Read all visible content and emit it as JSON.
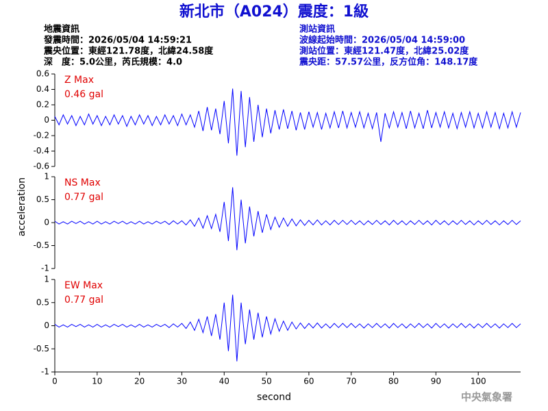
{
  "header": {
    "title": "新北市（A024）震度：1級",
    "left": [
      "地震資訊",
      "發震時間：2026/05/04 14:59:21",
      "震央位置：東經121.78度，北緯24.58度",
      "深　度：5.0公里，芮氏規模：4.0"
    ],
    "right": [
      "測站資訊",
      "波線起始時間：2026/05/04 14:59:00",
      "測站位置：東經121.47度，北緯25.02度",
      "震央距：57.57公里，反方位角：148.17度"
    ]
  },
  "y_label": "acceleration",
  "footer": "中央氣象署",
  "chart_data": [
    {
      "type": "line",
      "title": "Z Max",
      "annotation": "0.46 gal",
      "color": "#0000ff",
      "xlim": [
        0,
        110
      ],
      "ylim": [
        -0.6,
        0.6
      ],
      "yticks": [
        0.6,
        0.4,
        0.2,
        0,
        -0.2,
        -0.4,
        -0.6
      ],
      "x": [
        0,
        1,
        2,
        3,
        4,
        5,
        6,
        7,
        8,
        9,
        10,
        11,
        12,
        13,
        14,
        15,
        16,
        17,
        18,
        19,
        20,
        21,
        22,
        23,
        24,
        25,
        26,
        27,
        28,
        29,
        30,
        31,
        32,
        33,
        34,
        35,
        36,
        37,
        38,
        39,
        40,
        41,
        42,
        43,
        44,
        45,
        46,
        47,
        48,
        49,
        50,
        51,
        52,
        53,
        54,
        55,
        56,
        57,
        58,
        59,
        60,
        61,
        62,
        63,
        64,
        65,
        66,
        67,
        68,
        69,
        70,
        71,
        72,
        73,
        74,
        75,
        76,
        77,
        78,
        79,
        80,
        81,
        82,
        83,
        84,
        85,
        86,
        87,
        88,
        89,
        90,
        91,
        92,
        93,
        94,
        95,
        96,
        97,
        98,
        99,
        100,
        101,
        102,
        103,
        104,
        105,
        106,
        107,
        108,
        109,
        110
      ],
      "values": [
        0.05,
        -0.06,
        0.07,
        -0.05,
        0.06,
        -0.07,
        0.05,
        -0.06,
        0.08,
        -0.05,
        0.06,
        -0.07,
        0.05,
        -0.06,
        0.07,
        -0.05,
        0.06,
        -0.08,
        0.05,
        -0.06,
        0.07,
        -0.05,
        0.06,
        -0.07,
        0.05,
        -0.06,
        0.07,
        -0.05,
        0.06,
        -0.07,
        0.08,
        -0.06,
        0.07,
        -0.09,
        0.12,
        -0.14,
        0.17,
        -0.13,
        0.15,
        -0.18,
        0.25,
        -0.3,
        0.41,
        -0.46,
        0.38,
        -0.35,
        0.3,
        -0.28,
        0.2,
        -0.22,
        0.15,
        -0.17,
        0.13,
        -0.12,
        0.14,
        -0.11,
        0.12,
        -0.13,
        0.1,
        -0.12,
        0.11,
        -0.09,
        0.1,
        -0.12,
        0.09,
        -0.1,
        0.11,
        -0.1,
        0.12,
        -0.1,
        0.1,
        -0.09,
        0.11,
        -0.1,
        0.09,
        -0.11,
        0.1,
        -0.28,
        0.09,
        -0.1,
        0.11,
        -0.09,
        0.1,
        -0.11,
        0.12,
        -0.1,
        0.09,
        -0.11,
        0.13,
        -0.1,
        0.1,
        -0.09,
        0.11,
        -0.1,
        0.09,
        -0.11,
        0.1,
        -0.09,
        0.11,
        -0.1,
        0.09,
        -0.1,
        0.11,
        -0.09,
        0.1,
        -0.11,
        0.09,
        -0.1,
        0.11,
        -0.09,
        0.1
      ]
    },
    {
      "type": "line",
      "title": "NS Max",
      "annotation": "0.77 gal",
      "color": "#0000ff",
      "xlim": [
        0,
        110
      ],
      "ylim": [
        -1,
        1
      ],
      "yticks": [
        1,
        0.5,
        0,
        -0.5,
        -1
      ],
      "x": [
        0,
        1,
        2,
        3,
        4,
        5,
        6,
        7,
        8,
        9,
        10,
        11,
        12,
        13,
        14,
        15,
        16,
        17,
        18,
        19,
        20,
        21,
        22,
        23,
        24,
        25,
        26,
        27,
        28,
        29,
        30,
        31,
        32,
        33,
        34,
        35,
        36,
        37,
        38,
        39,
        40,
        41,
        42,
        43,
        44,
        45,
        46,
        47,
        48,
        49,
        50,
        51,
        52,
        53,
        54,
        55,
        56,
        57,
        58,
        59,
        60,
        61,
        62,
        63,
        64,
        65,
        66,
        67,
        68,
        69,
        70,
        71,
        72,
        73,
        74,
        75,
        76,
        77,
        78,
        79,
        80,
        81,
        82,
        83,
        84,
        85,
        86,
        87,
        88,
        89,
        90,
        91,
        92,
        93,
        94,
        95,
        96,
        97,
        98,
        99,
        100,
        101,
        102,
        103,
        104,
        105,
        106,
        107,
        108,
        109,
        110
      ],
      "values": [
        0.03,
        -0.03,
        0.02,
        -0.03,
        0.03,
        -0.02,
        0.03,
        -0.03,
        0.02,
        -0.03,
        0.03,
        -0.03,
        0.02,
        -0.03,
        0.03,
        -0.02,
        0.03,
        -0.03,
        0.02,
        -0.03,
        0.03,
        -0.03,
        0.02,
        -0.03,
        0.03,
        -0.02,
        0.03,
        -0.04,
        0.04,
        -0.03,
        0.04,
        -0.05,
        0.06,
        -0.08,
        0.1,
        -0.12,
        0.15,
        -0.13,
        0.18,
        -0.2,
        0.45,
        -0.4,
        0.77,
        -0.6,
        0.5,
        -0.45,
        0.35,
        -0.3,
        0.25,
        -0.22,
        0.18,
        -0.15,
        0.12,
        -0.1,
        0.1,
        -0.08,
        0.08,
        -0.07,
        0.06,
        -0.06,
        0.05,
        -0.05,
        0.06,
        -0.05,
        0.04,
        -0.05,
        0.05,
        -0.04,
        0.05,
        -0.04,
        0.05,
        -0.04,
        0.04,
        -0.05,
        0.04,
        -0.04,
        0.05,
        -0.04,
        0.04,
        -0.05,
        0.05,
        -0.04,
        0.04,
        -0.05,
        0.04,
        -0.04,
        0.05,
        -0.04,
        0.04,
        -0.05,
        0.05,
        -0.04,
        0.04,
        -0.05,
        0.04,
        -0.04,
        0.05,
        -0.04,
        0.04,
        -0.05,
        0.04,
        -0.04,
        0.05,
        -0.04,
        0.04,
        -0.05,
        0.04,
        -0.04,
        0.05,
        -0.04,
        0.04
      ]
    },
    {
      "type": "line",
      "title": "EW Max",
      "annotation": "0.77 gal",
      "color": "#0000ff",
      "xlim": [
        0,
        110
      ],
      "ylim": [
        -1,
        1
      ],
      "yticks": [
        1,
        0.5,
        0,
        -0.5,
        -1
      ],
      "xticks": [
        0,
        10,
        20,
        30,
        40,
        50,
        60,
        70,
        80,
        90,
        100
      ],
      "xlabel": "second",
      "x": [
        0,
        1,
        2,
        3,
        4,
        5,
        6,
        7,
        8,
        9,
        10,
        11,
        12,
        13,
        14,
        15,
        16,
        17,
        18,
        19,
        20,
        21,
        22,
        23,
        24,
        25,
        26,
        27,
        28,
        29,
        30,
        31,
        32,
        33,
        34,
        35,
        36,
        37,
        38,
        39,
        40,
        41,
        42,
        43,
        44,
        45,
        46,
        47,
        48,
        49,
        50,
        51,
        52,
        53,
        54,
        55,
        56,
        57,
        58,
        59,
        60,
        61,
        62,
        63,
        64,
        65,
        66,
        67,
        68,
        69,
        70,
        71,
        72,
        73,
        74,
        75,
        76,
        77,
        78,
        79,
        80,
        81,
        82,
        83,
        84,
        85,
        86,
        87,
        88,
        89,
        90,
        91,
        92,
        93,
        94,
        95,
        96,
        97,
        98,
        99,
        100,
        101,
        102,
        103,
        104,
        105,
        106,
        107,
        108,
        109,
        110
      ],
      "values": [
        0.03,
        -0.03,
        0.02,
        -0.03,
        0.03,
        -0.02,
        0.03,
        -0.03,
        0.02,
        -0.03,
        0.03,
        -0.03,
        0.02,
        -0.03,
        0.03,
        -0.02,
        0.03,
        -0.03,
        0.02,
        -0.03,
        0.03,
        -0.03,
        0.02,
        -0.03,
        0.03,
        -0.02,
        0.03,
        -0.04,
        0.04,
        -0.03,
        0.05,
        -0.06,
        0.08,
        -0.1,
        0.14,
        -0.15,
        0.2,
        -0.22,
        0.25,
        -0.3,
        0.5,
        -0.55,
        0.67,
        -0.77,
        0.5,
        -0.4,
        0.35,
        -0.3,
        0.28,
        -0.25,
        0.2,
        -0.18,
        0.15,
        -0.12,
        0.1,
        -0.1,
        0.08,
        -0.07,
        0.06,
        -0.06,
        0.05,
        -0.05,
        0.06,
        -0.05,
        0.04,
        -0.05,
        0.05,
        -0.04,
        0.05,
        -0.04,
        0.05,
        -0.04,
        0.04,
        -0.05,
        0.04,
        -0.04,
        0.05,
        -0.04,
        0.04,
        -0.05,
        0.05,
        -0.04,
        0.04,
        -0.05,
        0.04,
        -0.04,
        0.05,
        -0.04,
        0.04,
        -0.05,
        0.05,
        -0.04,
        0.04,
        -0.05,
        0.04,
        -0.04,
        0.05,
        -0.04,
        0.04,
        -0.05,
        0.04,
        -0.04,
        0.05,
        -0.04,
        0.04,
        -0.05,
        0.04,
        -0.04,
        0.05,
        -0.04,
        0.04
      ]
    }
  ]
}
